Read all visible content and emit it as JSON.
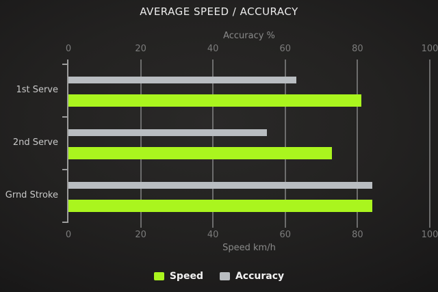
{
  "chart_data": {
    "type": "bar",
    "orientation": "horizontal",
    "title": "AVERAGE SPEED / ACCURACY",
    "categories": [
      "1st Serve",
      "2nd Serve",
      "Grnd Stroke"
    ],
    "series": [
      {
        "name": "Speed",
        "axis": "bottom",
        "color": "#aaf51e",
        "values": [
          81,
          73,
          84
        ]
      },
      {
        "name": "Accuracy",
        "axis": "top",
        "color": "#b9bdc1",
        "values": [
          63,
          55,
          84
        ]
      }
    ],
    "top_axis": {
      "label": "Accuracy %",
      "ticks": [
        0,
        20,
        40,
        60,
        80,
        100
      ],
      "range": [
        0,
        100
      ]
    },
    "bottom_axis": {
      "label": "Speed km/h",
      "ticks": [
        0,
        20,
        40,
        60,
        80,
        100
      ],
      "range": [
        0,
        100
      ]
    },
    "grid": true,
    "legend_position": "bottom",
    "colors": {
      "background": "#222120",
      "title_text": "#ececec",
      "axis_text": "#8a8a8a",
      "tick_text": "#7c7c7c",
      "category_text": "#c9c9c9",
      "grid_line": "#7a7a7a",
      "legend_text": "#f2f2f2"
    }
  }
}
